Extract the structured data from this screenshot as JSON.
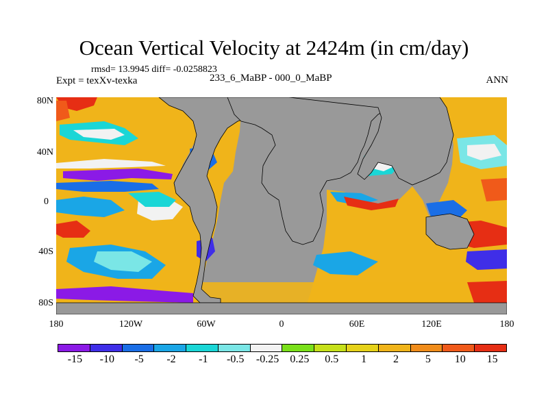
{
  "title": "Ocean Vertical Velocity at 2424m (in cm/day)",
  "stats": "rmsd= 13.9945 diff= -0.0258823",
  "expt_label": "Expt = texXv-texka",
  "experiment_name": "233_6_MaBP - 000_0_MaBP",
  "season": "ANN",
  "map": {
    "land_color": "#999999",
    "lat_ticks": [
      "80N",
      "40N",
      "0",
      "40S",
      "80S"
    ],
    "lon_ticks": [
      "180",
      "120W",
      "60W",
      "0",
      "60E",
      "120E",
      "180"
    ]
  },
  "colorbar": {
    "colors": [
      "#8b1ae6",
      "#3f2ee8",
      "#1a6ee6",
      "#1aa6e6",
      "#1ad6d6",
      "#7ae6e6",
      "#f2f2f2",
      "#7ae01a",
      "#c6e01a",
      "#e6d21a",
      "#f0b41a",
      "#f08c1a",
      "#f05a1a",
      "#e62e14"
    ],
    "labels": [
      "-15",
      "-10",
      "-5",
      "-2",
      "-1",
      "-0.5",
      "-0.25",
      "0.25",
      "0.5",
      "1",
      "2",
      "5",
      "10",
      "15"
    ]
  }
}
